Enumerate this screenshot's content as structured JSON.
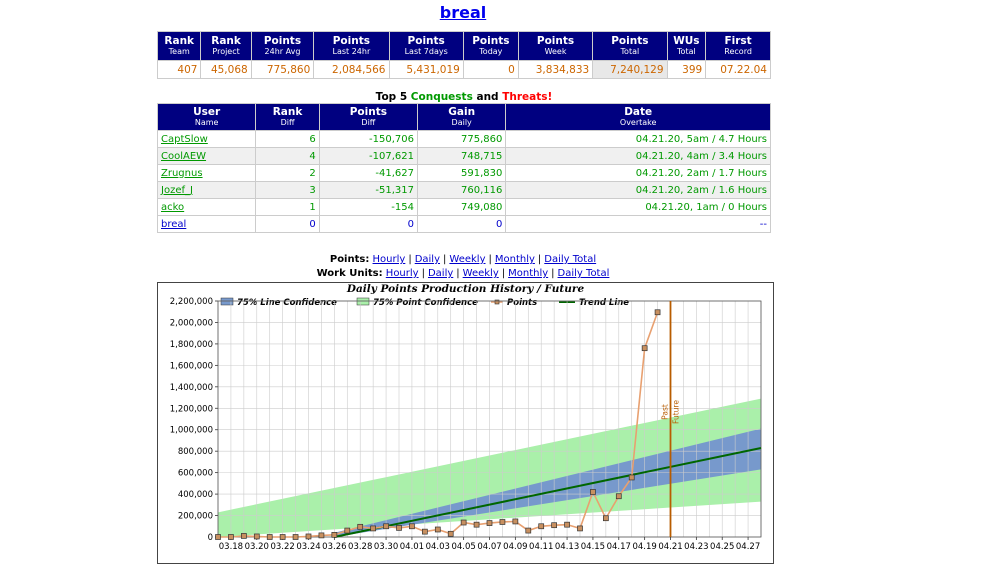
{
  "title": "breal",
  "rank_table": {
    "headers": [
      {
        "main": "Rank",
        "sub": "Team"
      },
      {
        "main": "Rank",
        "sub": "Project"
      },
      {
        "main": "Points",
        "sub": "24hr Avg"
      },
      {
        "main": "Points",
        "sub": "Last 24hr"
      },
      {
        "main": "Points",
        "sub": "Last 7days"
      },
      {
        "main": "Points",
        "sub": "Today"
      },
      {
        "main": "Points",
        "sub": "Week"
      },
      {
        "main": "Points",
        "sub": "Total"
      },
      {
        "main": "WUs",
        "sub": "Total"
      },
      {
        "main": "First",
        "sub": "Record"
      }
    ],
    "values": [
      "407",
      "45,068",
      "775,860",
      "2,084,566",
      "5,431,019",
      "0",
      "3,834,833",
      "7,240,129",
      "399",
      "07.22.04"
    ]
  },
  "conquests": {
    "title_prefix": "Top 5",
    "conquests_word": "Conquests",
    "and_word": "and",
    "threats_word": "Threats!",
    "headers": [
      {
        "main": "User",
        "sub": "Name"
      },
      {
        "main": "Rank",
        "sub": "Diff"
      },
      {
        "main": "Points",
        "sub": "Diff"
      },
      {
        "main": "Gain",
        "sub": "Daily"
      },
      {
        "main": "Date",
        "sub": "Overtake"
      }
    ],
    "rows": [
      {
        "user": "CaptSlow",
        "rank": "6",
        "points": "-150,706",
        "gain": "775,860",
        "date": "04.21.20, 5am / 4.7 Hours"
      },
      {
        "user": "CoolAEW",
        "rank": "4",
        "points": "-107,621",
        "gain": "748,715",
        "date": "04.21.20, 4am / 3.4 Hours"
      },
      {
        "user": "Zrugnus",
        "rank": "2",
        "points": "-41,627",
        "gain": "591,830",
        "date": "04.21.20, 2am / 1.7 Hours"
      },
      {
        "user": "Jozef_J",
        "rank": "3",
        "points": "-51,317",
        "gain": "760,116",
        "date": "04.21.20, 2am / 1.6 Hours"
      },
      {
        "user": "acko",
        "rank": "1",
        "points": "-154",
        "gain": "749,080",
        "date": "04.21.20, 1am / 0 Hours"
      },
      {
        "user": "breal",
        "rank": "0",
        "points": "0",
        "gain": "0",
        "date": "--"
      }
    ]
  },
  "links": {
    "points_label": "Points:",
    "work_units_label": "Work Units:",
    "items": [
      "Hourly",
      "Daily",
      "Weekly",
      "Monthly",
      "Daily Total"
    ],
    "separator": "|"
  },
  "chart_data": {
    "type": "line",
    "title": "Daily Points Production History / Future",
    "legend": [
      "75% Line Confidence",
      "75% Point Confidence",
      "Points",
      "Trend Line"
    ],
    "legend_position": "top",
    "x_ticks": [
      "03.18",
      "03.20",
      "03.22",
      "03.24",
      "03.26",
      "03.28",
      "03.30",
      "04.01",
      "04.03",
      "04.05",
      "04.07",
      "04.09",
      "04.11",
      "04.13",
      "04.15",
      "04.17",
      "04.19",
      "04.21",
      "04.23",
      "04.25",
      "04.27"
    ],
    "y_ticks": [
      "0",
      "200,000",
      "400,000",
      "600,000",
      "800,000",
      "1,000,000",
      "1,200,000",
      "1,400,000",
      "1,600,000",
      "1,800,000",
      "2,000,000",
      "2,200,000"
    ],
    "ylim": [
      0,
      2200000
    ],
    "x_range_dates": [
      "03.17",
      "04.28"
    ],
    "points": {
      "x": [
        "03.17",
        "03.18",
        "03.19",
        "03.20",
        "03.21",
        "03.22",
        "03.23",
        "03.24",
        "03.25",
        "03.26",
        "03.27",
        "03.28",
        "03.29",
        "03.30",
        "03.31",
        "04.01",
        "04.02",
        "04.03",
        "04.04",
        "04.05",
        "04.06",
        "04.07",
        "04.08",
        "04.09",
        "04.10",
        "04.11",
        "04.12",
        "04.13",
        "04.14",
        "04.15",
        "04.16",
        "04.17",
        "04.18",
        "04.19",
        "04.20"
      ],
      "y": [
        0,
        0,
        10000,
        5000,
        0,
        0,
        0,
        5000,
        15000,
        20000,
        60000,
        95000,
        80000,
        100000,
        85000,
        100000,
        50000,
        70000,
        30000,
        135000,
        115000,
        130000,
        140000,
        145000,
        60000,
        100000,
        110000,
        115000,
        80000,
        420000,
        175000,
        380000,
        555000,
        1760000,
        2095000
      ]
    },
    "trend_line": {
      "x": [
        "03.26",
        "04.28"
      ],
      "y": [
        0,
        830000
      ]
    },
    "line_confidence": {
      "x": [
        "03.26",
        "04.28"
      ],
      "upper": [
        40000,
        1010000
      ],
      "lower": [
        0,
        630000
      ]
    },
    "point_confidence": {
      "x": [
        "03.17",
        "04.28"
      ],
      "upper": [
        230000,
        1290000
      ],
      "lower": [
        0,
        330000
      ]
    },
    "divider": {
      "date": "04.21",
      "label_left": "Past",
      "label_right": "Future"
    },
    "colors": {
      "line_conf": "#7799cc",
      "point_conf": "#aaf0aa",
      "points_line": "#e8a070",
      "marker_fill": "#c89060",
      "trend": "#006600",
      "divider": "#b85c00",
      "grid": "#cccccc"
    },
    "grid": true
  }
}
